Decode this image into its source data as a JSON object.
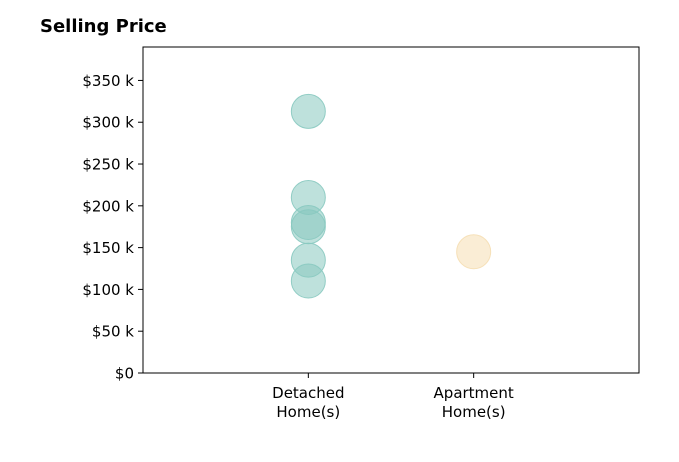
{
  "chart_data": {
    "type": "scatter",
    "title": "Selling Price",
    "xlabel": "",
    "ylabel": "",
    "categories": [
      "Detached\nHome(s)",
      "Apartment\nHome(s)"
    ],
    "xlim": [
      0,
      3
    ],
    "ylim": [
      0,
      390000
    ],
    "yticks": [
      0,
      50000,
      100000,
      150000,
      200000,
      250000,
      300000,
      350000
    ],
    "ytick_labels": [
      "$0",
      "$50 k",
      "$100 k",
      "$150 k",
      "$200 k",
      "$250 k",
      "$300 k",
      "$350 k"
    ],
    "grid": false,
    "series": [
      {
        "category": "Detached\nHome(s)",
        "color": "#88c9c0",
        "values": [
          313000,
          210000,
          180000,
          175000,
          135000,
          110000
        ]
      },
      {
        "category": "Apartment\nHome(s)",
        "color": "#f5deb3",
        "values": [
          145000
        ]
      }
    ]
  }
}
